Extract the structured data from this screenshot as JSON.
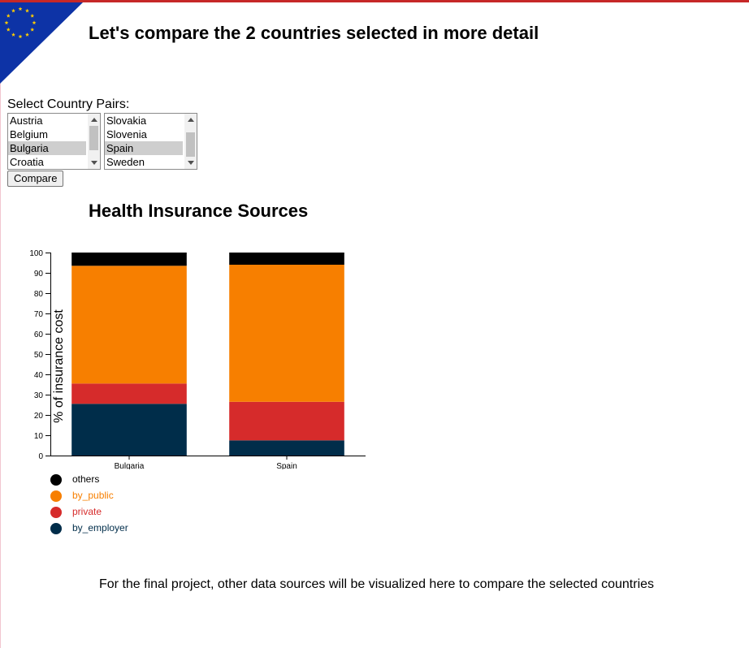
{
  "page": {
    "title": "Let's compare the 2 countries selected in more detail"
  },
  "selector": {
    "label": "Select Country Pairs:",
    "list_a": {
      "options": [
        "Austria",
        "Belgium",
        "Bulgaria",
        "Croatia"
      ],
      "selected": "Bulgaria"
    },
    "list_b": {
      "options": [
        "Slovakia",
        "Slovenia",
        "Spain",
        "Sweden"
      ],
      "selected": "Spain"
    },
    "compare_label": "Compare"
  },
  "chart_section": {
    "title": "Health Insurance Sources"
  },
  "chart_data": {
    "type": "bar",
    "stacked": true,
    "title": "Health Insurance Sources",
    "ylabel": "% of insurance cost",
    "xlabel": "",
    "ylim": [
      0,
      100
    ],
    "yticks": [
      0,
      10,
      20,
      30,
      40,
      50,
      60,
      70,
      80,
      90,
      100
    ],
    "categories": [
      "Bulgaria",
      "Spain"
    ],
    "series": [
      {
        "name": "by_employer",
        "color": "#002d4a",
        "values": [
          25.5,
          7.5
        ]
      },
      {
        "name": "private",
        "color": "#d62b2b",
        "values": [
          10,
          19
        ]
      },
      {
        "name": "by_public",
        "color": "#f77f00",
        "values": [
          58,
          67.5
        ]
      },
      {
        "name": "others",
        "color": "#000000",
        "values": [
          6.5,
          6
        ]
      }
    ],
    "legend_order": [
      "others",
      "by_public",
      "private",
      "by_employer"
    ],
    "legend_position": "bottom-left",
    "grid": false
  },
  "footer": {
    "note": "For the final project, other data sources will be visualized here to compare the selected countries"
  },
  "colors": {
    "eu_blue": "#0d33a6",
    "eu_star": "#ffcc00",
    "top_border": "#c62828"
  }
}
